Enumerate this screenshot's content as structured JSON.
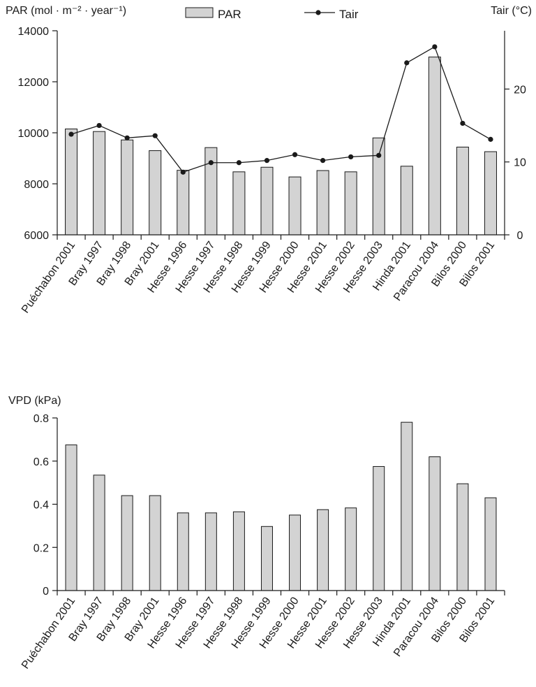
{
  "chart_data": [
    {
      "type": "bar",
      "categories": [
        "Puéchabon 2001",
        "Bray 1997",
        "Bray 1998",
        "Bray 2001",
        "Hesse 1996",
        "Hesse 1997",
        "Hesse 1998",
        "Hesse 1999",
        "Hesse 2000",
        "Hesse 2001",
        "Hesse 2002",
        "Hesse 2003",
        "Hinda 2001",
        "Paracou 2004",
        "Bilos 2000",
        "Bilos 2001"
      ],
      "ylabel": "PAR (mol · m⁻² · year⁻¹)",
      "ylabel2": "Tair (°C)",
      "ylim": [
        6000,
        14000
      ],
      "ylim2": [
        0,
        28
      ],
      "yticks": [
        "6000",
        "8000",
        "10000",
        "12000",
        "14000"
      ],
      "yticks2": [
        "0",
        "10",
        "20"
      ],
      "legend": {
        "bar": "PAR",
        "line": "Tair"
      },
      "series": [
        {
          "name": "PAR",
          "kind": "bar",
          "values": [
            10150,
            10050,
            9720,
            9300,
            8530,
            9420,
            8470,
            8650,
            8270,
            8520,
            8470,
            9800,
            8690,
            12970,
            9440,
            9260
          ]
        },
        {
          "name": "Tair",
          "kind": "line",
          "axis": "right",
          "values": [
            13.8,
            15.0,
            13.3,
            13.6,
            8.6,
            9.9,
            9.9,
            10.2,
            11.0,
            10.2,
            10.7,
            10.9,
            23.6,
            25.8,
            15.3,
            13.1
          ]
        }
      ]
    },
    {
      "type": "bar",
      "categories": [
        "Puéchabon 2001",
        "Bray 1997",
        "Bray 1998",
        "Bray 2001",
        "Hesse 1996",
        "Hesse 1997",
        "Hesse 1998",
        "Hesse 1999",
        "Hesse 2000",
        "Hesse 2001",
        "Hesse 2002",
        "Hesse 2003",
        "Hinda 2001",
        "Paracou 2004",
        "Bilos 2000",
        "Bilos 2001"
      ],
      "ylabel": "VPD (kPa)",
      "ylim": [
        0,
        0.8
      ],
      "yticks": [
        "0",
        "0.2",
        "0.4",
        "0.6",
        "0.8"
      ],
      "series": [
        {
          "name": "VPD",
          "values": [
            0.675,
            0.535,
            0.44,
            0.44,
            0.36,
            0.36,
            0.365,
            0.297,
            0.35,
            0.375,
            0.383,
            0.575,
            0.78,
            0.62,
            0.495,
            0.43
          ]
        }
      ]
    }
  ]
}
